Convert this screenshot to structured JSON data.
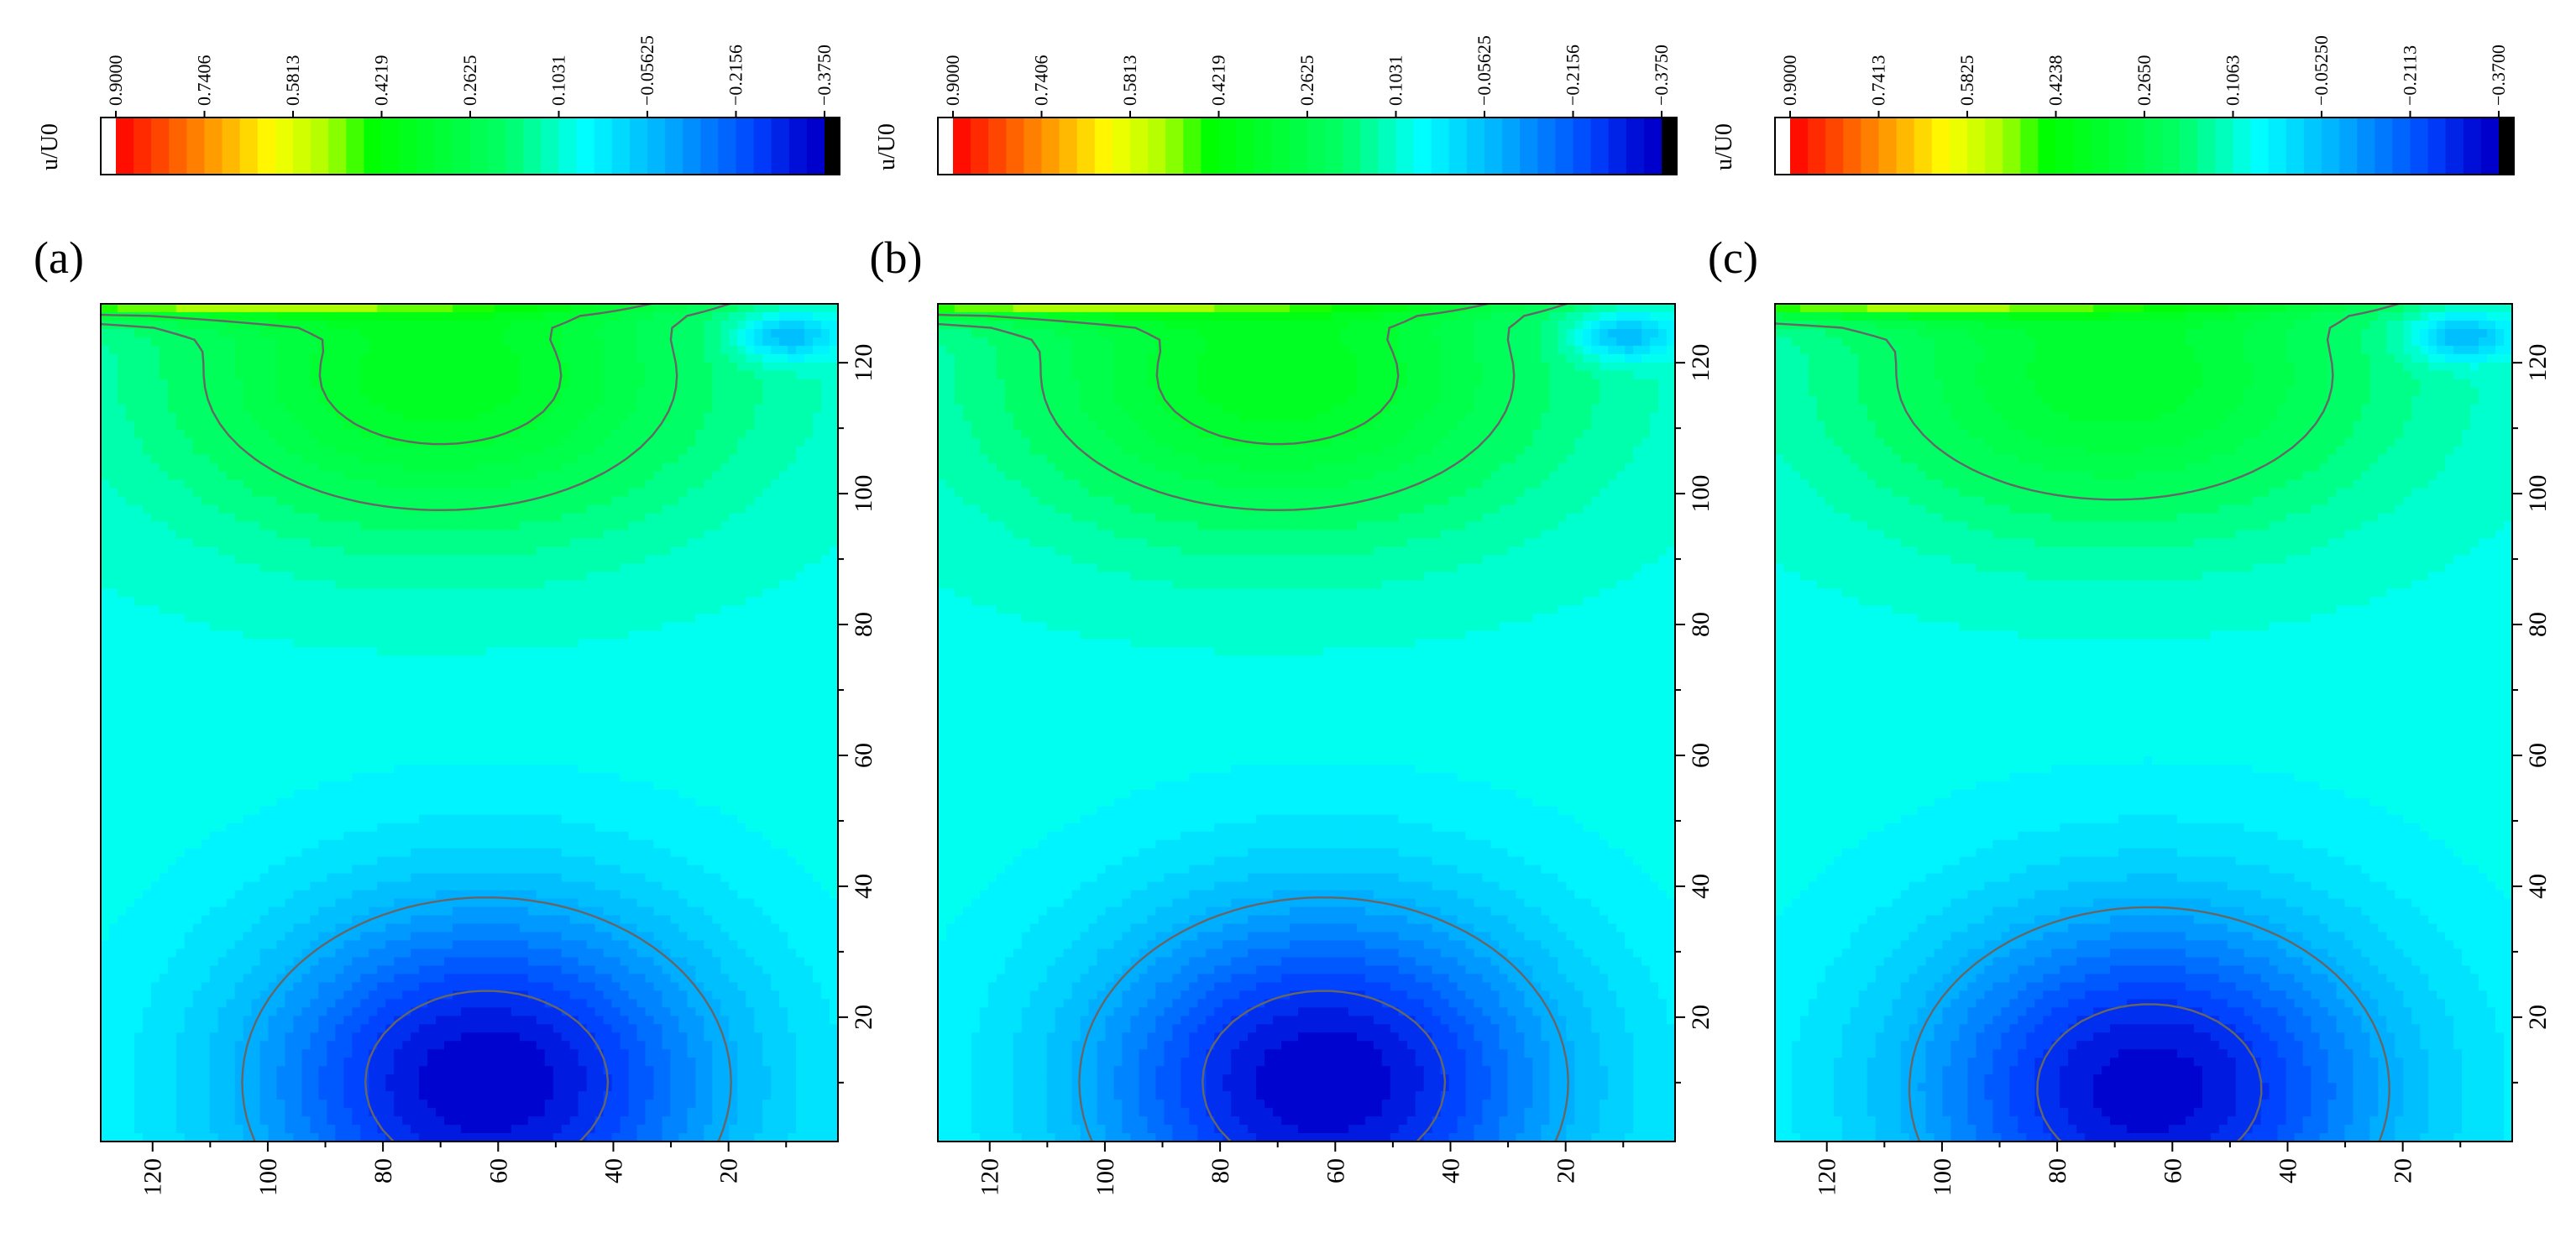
{
  "figure": {
    "panel_count": 3
  },
  "colormap": {
    "top_color": "#ffffff",
    "stops": [
      {
        "t": 0.0,
        "color": "#ff0000"
      },
      {
        "t": 0.08,
        "color": "#ff5a00"
      },
      {
        "t": 0.15,
        "color": "#ffaa00"
      },
      {
        "t": 0.22,
        "color": "#ffff00"
      },
      {
        "t": 0.3,
        "color": "#aaff00"
      },
      {
        "t": 0.36,
        "color": "#00ff00"
      },
      {
        "t": 0.55,
        "color": "#00ff66"
      },
      {
        "t": 0.66,
        "color": "#00ffff"
      },
      {
        "t": 0.78,
        "color": "#00aaff"
      },
      {
        "t": 0.9,
        "color": "#0044ff"
      },
      {
        "t": 0.98,
        "color": "#0000cc"
      }
    ],
    "bottom_color": "#000000",
    "contour_line_color": "#666666"
  },
  "chart_data": [
    {
      "type": "heatmap",
      "panel_label": "(a)",
      "colorbar": {
        "label": "u/U0",
        "tick_labels": [
          "0.9000",
          "0.7406",
          "0.5813",
          "0.4219",
          "0.2625",
          "0.1031",
          "−0.05625",
          "−0.2156",
          "−0.3750"
        ],
        "range": [
          -0.375,
          0.9
        ],
        "levels": 40
      },
      "xlim": [
        129,
        1
      ],
      "ylim": [
        1,
        129
      ],
      "x_ticks": [
        "120",
        "100",
        "80",
        "60",
        "40",
        "20"
      ],
      "y_ticks": [
        "20",
        "40",
        "60",
        "80",
        "100",
        "120"
      ],
      "field": {
        "top_lid_max": 0.65,
        "upper_vortex": {
          "peak_value": 0.35,
          "center_x": 70,
          "center_y": 118
        },
        "lower_vortex": {
          "min_value": -0.375,
          "center_x": 62,
          "center_y": 10
        },
        "corner_eddy": {
          "value": -0.15,
          "center_x": 10,
          "center_y": 124
        }
      },
      "contour_lines": [
        {
          "value": 0.3,
          "label": "inner upper contour"
        },
        {
          "value": 0.2,
          "label": "outer upper contour"
        },
        {
          "value": -0.1,
          "label": "outer lower contour"
        },
        {
          "value": -0.28,
          "label": "inner lower contour"
        }
      ]
    },
    {
      "type": "heatmap",
      "panel_label": "(b)",
      "colorbar": {
        "label": "u/U0",
        "tick_labels": [
          "0.9000",
          "0.7406",
          "0.5813",
          "0.4219",
          "0.2625",
          "0.1031",
          "−0.05625",
          "−0.2156",
          "−0.3750"
        ],
        "range": [
          -0.375,
          0.9
        ],
        "levels": 40
      },
      "xlim": [
        129,
        1
      ],
      "ylim": [
        1,
        129
      ],
      "x_ticks": [
        "120",
        "100",
        "80",
        "60",
        "40",
        "20"
      ],
      "y_ticks": [
        "20",
        "40",
        "60",
        "80",
        "100",
        "120"
      ],
      "field": {
        "top_lid_max": 0.65,
        "upper_vortex": {
          "peak_value": 0.35,
          "center_x": 70,
          "center_y": 118
        },
        "lower_vortex": {
          "min_value": -0.375,
          "center_x": 62,
          "center_y": 10
        },
        "corner_eddy": {
          "value": -0.15,
          "center_x": 10,
          "center_y": 124
        }
      },
      "contour_lines": [
        {
          "value": 0.3,
          "label": "inner upper contour"
        },
        {
          "value": 0.2,
          "label": "outer upper contour"
        },
        {
          "value": -0.1,
          "label": "outer lower contour"
        },
        {
          "value": -0.28,
          "label": "inner lower contour"
        }
      ]
    },
    {
      "type": "heatmap",
      "panel_label": "(c)",
      "colorbar": {
        "label": "u/U0",
        "tick_labels": [
          "0.9000",
          "0.7413",
          "0.5825",
          "0.4238",
          "0.2650",
          "0.1063",
          "−0.05250",
          "−0.2113",
          "−0.3700"
        ],
        "range": [
          -0.37,
          0.9
        ],
        "levels": 40
      },
      "xlim": [
        129,
        1
      ],
      "ylim": [
        1,
        129
      ],
      "x_ticks": [
        "120",
        "100",
        "80",
        "60",
        "40",
        "20"
      ],
      "y_ticks": [
        "20",
        "40",
        "60",
        "80",
        "100",
        "120"
      ],
      "field": {
        "top_lid_max": 0.65,
        "upper_vortex": {
          "peak_value": 0.32,
          "center_x": 70,
          "center_y": 118
        },
        "lower_vortex": {
          "min_value": -0.36,
          "center_x": 64,
          "center_y": 9
        },
        "corner_eddy": {
          "value": -0.15,
          "center_x": 10,
          "center_y": 124
        }
      },
      "contour_lines": [
        {
          "value": 0.2,
          "label": "outer upper contour"
        },
        {
          "value": -0.1,
          "label": "outer lower contour"
        },
        {
          "value": -0.28,
          "label": "inner lower contour"
        }
      ]
    }
  ]
}
